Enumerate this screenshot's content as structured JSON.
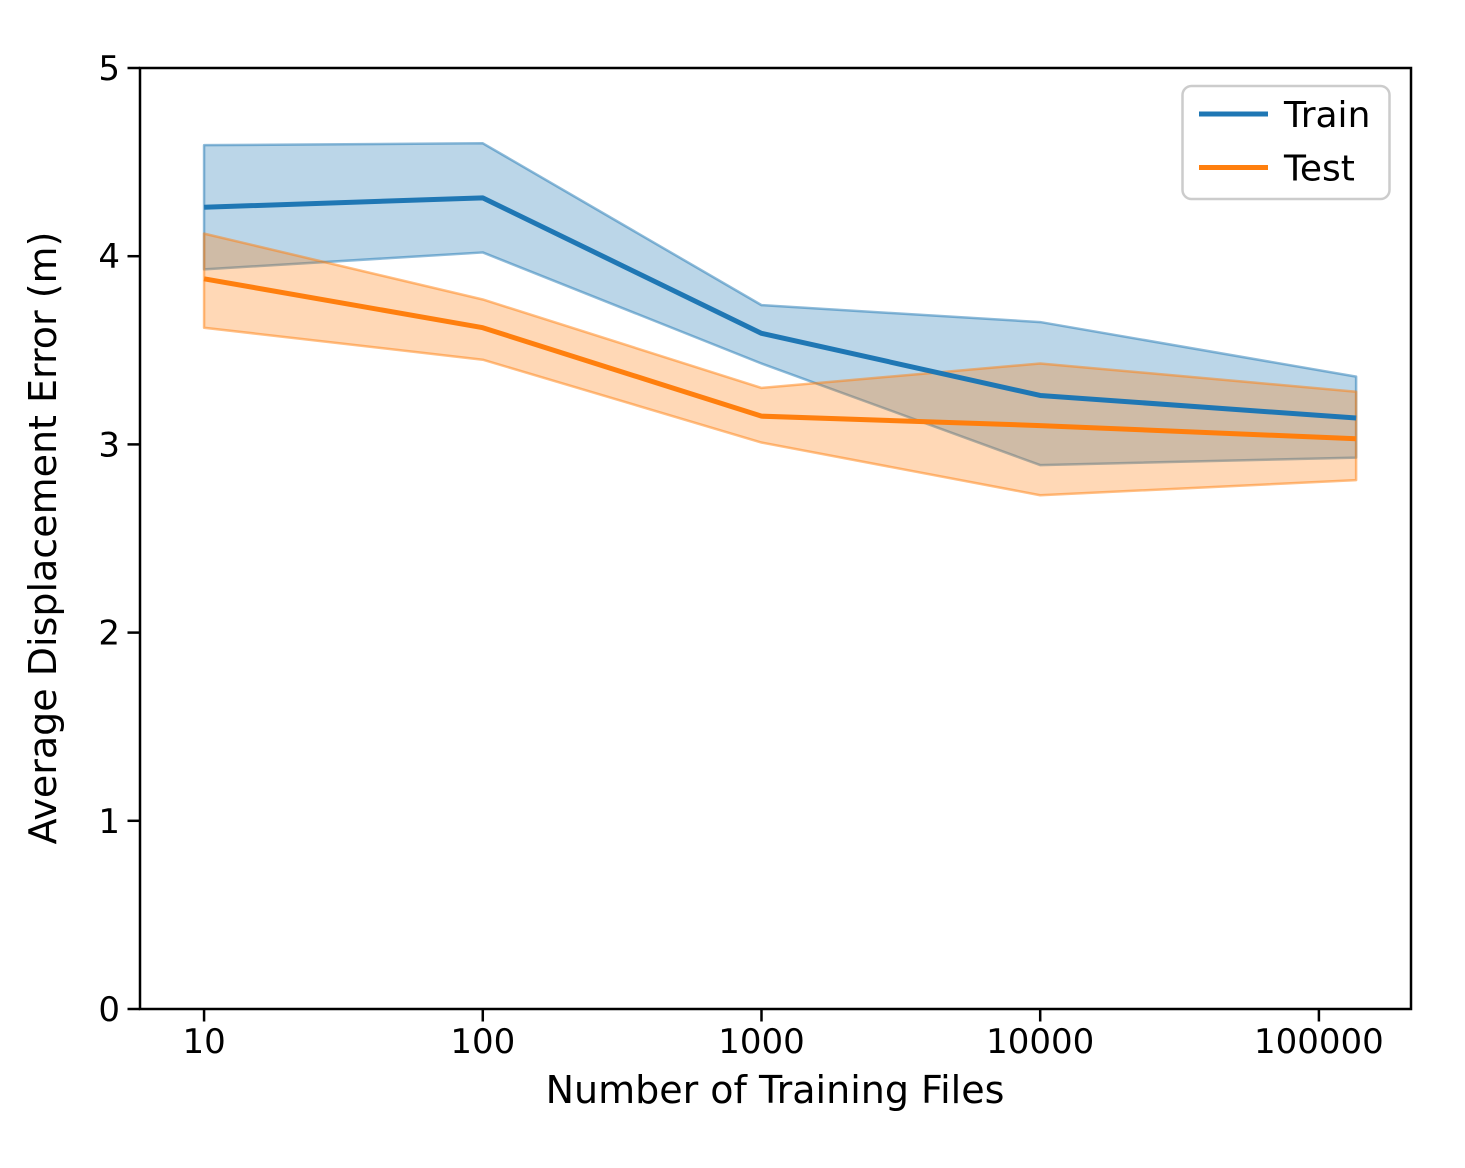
{
  "figure": {
    "background": "#ffffff",
    "axis_color": "#000000",
    "legend_border_color": "#cccccc"
  },
  "chart_data": {
    "type": "line",
    "title": "",
    "xlabel": "Number of Training Files",
    "ylabel": "Average Displacement Error (m)",
    "x_scale": "log",
    "xlim": [
      5.89,
      214000
    ],
    "ylim": [
      0,
      5
    ],
    "x_ticks": [
      10,
      100,
      1000,
      10000,
      100000
    ],
    "x_tick_labels": [
      "10",
      "100",
      "1000",
      "10000",
      "100000"
    ],
    "y_ticks": [
      0,
      1,
      2,
      3,
      4,
      5
    ],
    "y_tick_labels": [
      "0",
      "1",
      "2",
      "3",
      "4",
      "5"
    ],
    "grid": false,
    "legend": {
      "position": "upper right",
      "entries": [
        "Train",
        "Test"
      ]
    },
    "band_fill_alpha": 0.3,
    "band_edge_alpha": 0.5,
    "series": [
      {
        "name": "Train",
        "color": "#1f77b4",
        "x": [
          10,
          100,
          1000,
          10000,
          136000
        ],
        "y": [
          4.26,
          4.31,
          3.59,
          3.26,
          3.14
        ],
        "band_low": [
          3.93,
          4.02,
          3.43,
          2.89,
          2.93
        ],
        "band_high": [
          4.59,
          4.6,
          3.74,
          3.65,
          3.36
        ]
      },
      {
        "name": "Test",
        "color": "#ff7f0e",
        "x": [
          10,
          100,
          1000,
          10000,
          136000
        ],
        "y": [
          3.88,
          3.62,
          3.15,
          3.1,
          3.03
        ],
        "band_low": [
          3.62,
          3.45,
          3.01,
          2.73,
          2.81
        ],
        "band_high": [
          4.12,
          3.77,
          3.3,
          3.43,
          3.28
        ]
      }
    ]
  }
}
